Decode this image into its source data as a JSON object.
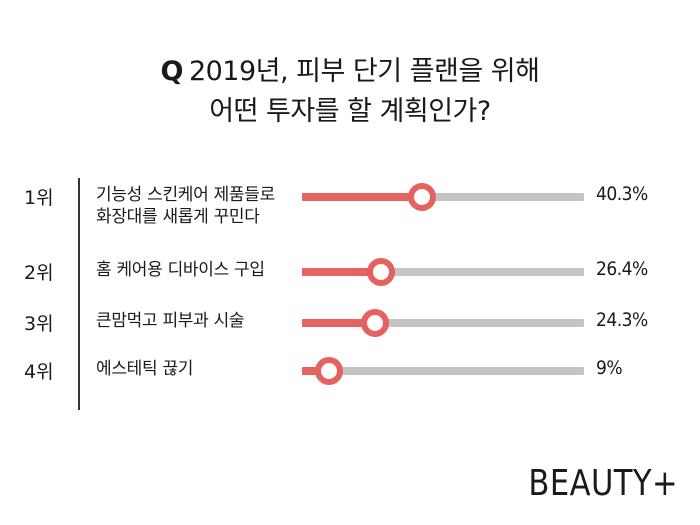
{
  "title": {
    "q_mark": "Q",
    "line1": "2019년, 피부 단기 플랜을 위해",
    "line2": "어떤 투자를 할 계획인가?"
  },
  "brand": "BEAUTY+",
  "colors": {
    "accent": "#e4625f",
    "track": "#c4c4c4"
  },
  "chart_data": {
    "type": "bar",
    "title": "Q 2019년, 피부 단기 플랜을 위해 어떤 투자를 할 계획인가?",
    "xlim": [
      0,
      100
    ],
    "categories": [
      "기능성 스킨케어 제품들로 화장대를 새롭게 꾸민다",
      "홈 케어용 디바이스 구입",
      "큰맘먹고 피부과 시술",
      "에스테틱 끊기"
    ],
    "values": [
      40.3,
      26.4,
      24.3,
      9
    ],
    "rows": [
      {
        "rank": "1위",
        "label_lines": [
          "기능성 스킨케어 제품들로",
          "화장대를 새롭게 꾸민다"
        ],
        "value": 40.3,
        "value_label": "40.3%"
      },
      {
        "rank": "2위",
        "label_lines": [
          "홈 케어용 디바이스 구입"
        ],
        "value": 26.4,
        "value_label": "26.4%"
      },
      {
        "rank": "3위",
        "label_lines": [
          "큰맘먹고 피부과 시술"
        ],
        "value": 24.3,
        "value_label": "24.3%"
      },
      {
        "rank": "4위",
        "label_lines": [
          "에스테틱 끊기"
        ],
        "value": 9,
        "value_label": "9%"
      }
    ]
  }
}
